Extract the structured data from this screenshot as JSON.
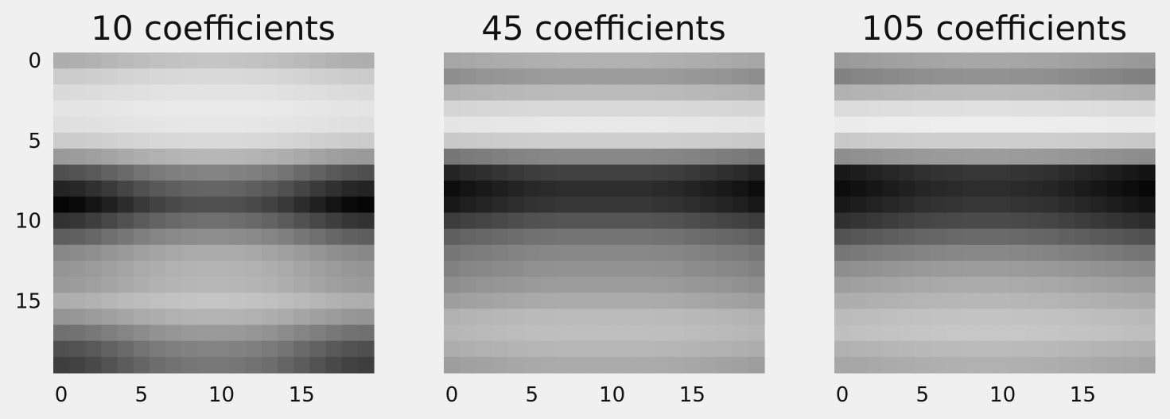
{
  "chart_data": [
    {
      "type": "heatmap",
      "title": "10 coefficients",
      "colormap": "gray",
      "size": [
        20,
        20
      ],
      "x_ticks": [
        0,
        5,
        10,
        15
      ],
      "y_ticks": [
        0,
        5,
        10,
        15
      ],
      "xlim": [
        0,
        19
      ],
      "ylim": [
        19,
        0
      ],
      "grid": false,
      "shows_y_tick_labels": true,
      "row_darkness": [
        0.3,
        0.18,
        0.12,
        0.08,
        0.1,
        0.18,
        0.38,
        0.68,
        0.86,
        0.98,
        0.8,
        0.62,
        0.45,
        0.4,
        0.38,
        0.3,
        0.4,
        0.55,
        0.68,
        0.75
      ],
      "column_shape": [
        1.0,
        0.98,
        0.94,
        0.89,
        0.84,
        0.79,
        0.75,
        0.72,
        0.7,
        0.69,
        0.69,
        0.7,
        0.72,
        0.75,
        0.79,
        0.84,
        0.89,
        0.94,
        0.98,
        1.0
      ]
    },
    {
      "type": "heatmap",
      "title": "45 coefficients",
      "colormap": "gray",
      "size": [
        20,
        20
      ],
      "x_ticks": [
        0,
        5,
        10,
        15
      ],
      "y_ticks": [],
      "xlim": [
        0,
        19
      ],
      "ylim": [
        19,
        0
      ],
      "grid": false,
      "shows_y_tick_labels": false,
      "row_darkness": [
        0.35,
        0.45,
        0.3,
        0.15,
        0.08,
        0.2,
        0.55,
        0.9,
        1.0,
        0.95,
        0.8,
        0.65,
        0.55,
        0.5,
        0.45,
        0.38,
        0.3,
        0.28,
        0.32,
        0.38
      ],
      "column_shape": [
        0.95,
        0.92,
        0.9,
        0.88,
        0.86,
        0.84,
        0.83,
        0.82,
        0.82,
        0.82,
        0.82,
        0.82,
        0.82,
        0.83,
        0.84,
        0.86,
        0.88,
        0.9,
        0.92,
        0.95
      ]
    },
    {
      "type": "heatmap",
      "title": "105 coefficients",
      "colormap": "gray",
      "size": [
        20,
        20
      ],
      "x_ticks": [
        0,
        5,
        10,
        15
      ],
      "y_ticks": [],
      "xlim": [
        0,
        19
      ],
      "ylim": [
        19,
        0
      ],
      "grid": false,
      "shows_y_tick_labels": false,
      "row_darkness": [
        0.4,
        0.5,
        0.3,
        0.12,
        0.05,
        0.2,
        0.45,
        0.95,
        1.0,
        0.95,
        0.85,
        0.7,
        0.55,
        0.45,
        0.38,
        0.32,
        0.26,
        0.24,
        0.3,
        0.35
      ],
      "column_shape": [
        0.95,
        0.93,
        0.91,
        0.89,
        0.87,
        0.85,
        0.84,
        0.83,
        0.82,
        0.82,
        0.82,
        0.83,
        0.84,
        0.85,
        0.87,
        0.89,
        0.91,
        0.93,
        0.95,
        0.97
      ]
    }
  ]
}
